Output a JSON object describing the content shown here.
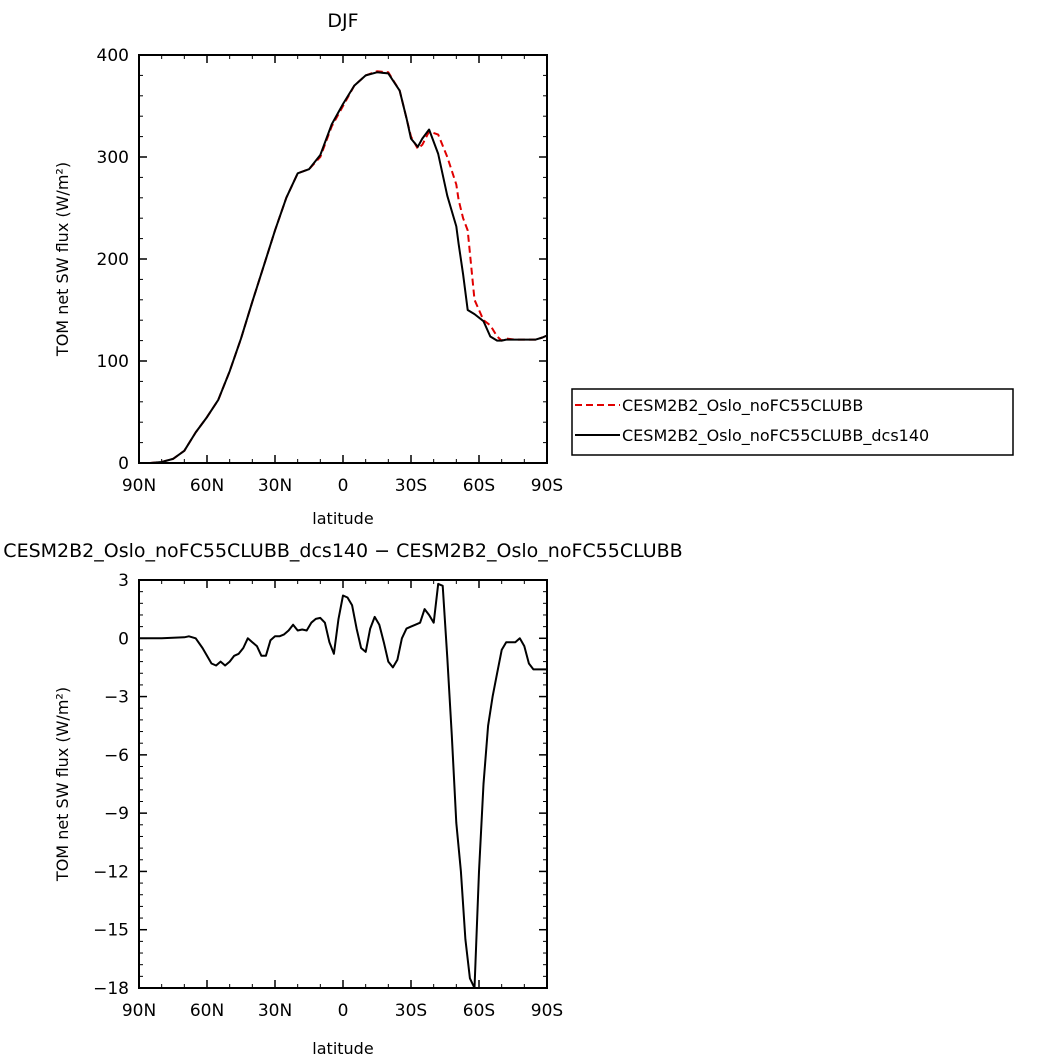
{
  "chart_data": [
    {
      "type": "line",
      "title": "DJF",
      "xlabel": "latitude",
      "ylabel": "TOM net SW flux (W/m²)",
      "xlim": [
        -90,
        90
      ],
      "ylim": [
        0,
        400
      ],
      "xticks": [
        -90,
        -60,
        -30,
        0,
        30,
        60,
        90
      ],
      "xtick_labels": [
        "90N",
        "60N",
        "30N",
        "0",
        "30S",
        "60S",
        "90S"
      ],
      "yticks": [
        0,
        100,
        200,
        300,
        400
      ],
      "ytick_labels": [
        "0",
        "100",
        "200",
        "300",
        "400"
      ],
      "legend": "outside-right",
      "series": [
        {
          "name": "CESM2B2_Oslo_noFC55CLUBB",
          "color": "#e00000",
          "dash": "dashed",
          "x": [
            -90,
            -85,
            -80,
            -75,
            -70,
            -65,
            -60,
            -55,
            -50,
            -45,
            -40,
            -35,
            -30,
            -25,
            -20,
            -15,
            -10,
            -5,
            0,
            5,
            10,
            15,
            20,
            25,
            28,
            30,
            33,
            35,
            38,
            42,
            46,
            50,
            51,
            53,
            55,
            58,
            62,
            65,
            68,
            70,
            72,
            76,
            78,
            80,
            85,
            88,
            90
          ],
          "y": [
            0,
            0,
            1,
            4,
            12,
            30,
            45,
            62,
            90,
            122,
            158,
            193,
            228,
            260,
            284,
            288,
            300,
            330,
            350,
            370,
            380,
            384,
            383,
            365,
            338,
            320,
            308,
            312,
            325,
            322,
            300,
            273,
            258,
            240,
            228,
            160,
            140,
            135,
            124,
            120,
            122,
            121,
            121,
            121,
            121,
            123,
            125
          ]
        },
        {
          "name": "CESM2B2_Oslo_noFC55CLUBB_dcs140",
          "color": "#000000",
          "dash": "solid",
          "x": [
            -90,
            -85,
            -80,
            -75,
            -70,
            -65,
            -60,
            -55,
            -50,
            -45,
            -40,
            -35,
            -30,
            -25,
            -20,
            -15,
            -10,
            -5,
            0,
            5,
            10,
            15,
            20,
            25,
            28,
            30,
            33,
            35,
            38,
            42,
            46,
            50,
            51,
            53,
            55,
            58,
            62,
            65,
            68,
            70,
            72,
            76,
            78,
            80,
            85,
            88,
            90
          ],
          "y": [
            0,
            0,
            1,
            4,
            12,
            30,
            45,
            62,
            90,
            122,
            158,
            193,
            228,
            260,
            284,
            288,
            302,
            332,
            352,
            370,
            380,
            383,
            382,
            365,
            338,
            318,
            310,
            318,
            327,
            303,
            262,
            232,
            215,
            185,
            150,
            146,
            139,
            124,
            120,
            120,
            121,
            121,
            121,
            121,
            121,
            123,
            125
          ]
        }
      ]
    },
    {
      "type": "line",
      "title": "CESM2B2_Oslo_noFC55CLUBB_dcs140 − CESM2B2_Oslo_noFC55CLUBB",
      "xlabel": "latitude",
      "ylabel": "TOM net SW flux (W/m²)",
      "xlim": [
        -90,
        90
      ],
      "ylim": [
        -18,
        3
      ],
      "xticks": [
        -90,
        -60,
        -30,
        0,
        30,
        60,
        90
      ],
      "xtick_labels": [
        "90N",
        "60N",
        "30N",
        "0",
        "30S",
        "60S",
        "90S"
      ],
      "yticks": [
        3,
        0,
        -3,
        -6,
        -9,
        -12,
        -15,
        -18
      ],
      "ytick_labels": [
        "3",
        "0",
        "−3",
        "−6",
        "−9",
        "−12",
        "−15",
        "−18"
      ],
      "series": [
        {
          "color": "#000000",
          "x": [
            -90,
            -80,
            -70,
            -68,
            -65,
            -62,
            -60,
            -58,
            -56,
            -54,
            -52,
            -50,
            -48,
            -46,
            -44,
            -42,
            -40,
            -38,
            -36,
            -34,
            -32,
            -30,
            -28,
            -26,
            -24,
            -22,
            -20,
            -18,
            -16,
            -14,
            -12,
            -10,
            -8,
            -6,
            -4,
            -2,
            0,
            2,
            4,
            6,
            8,
            10,
            12,
            14,
            16,
            18,
            20,
            22,
            24,
            26,
            28,
            30,
            32,
            34,
            36,
            38,
            40,
            42,
            44,
            46,
            48,
            50,
            52,
            54,
            56,
            58,
            60,
            62,
            64,
            66,
            68,
            70,
            72,
            74,
            76,
            78,
            80,
            82,
            84,
            86,
            88,
            90
          ],
          "y": [
            0,
            0,
            0.05,
            0.1,
            0,
            -0.5,
            -0.9,
            -1.3,
            -1.4,
            -1.2,
            -1.4,
            -1.2,
            -0.9,
            -0.8,
            -0.5,
            0,
            -0.2,
            -0.4,
            -0.9,
            -0.9,
            -0.1,
            0.1,
            0.1,
            0.2,
            0.4,
            0.7,
            0.4,
            0.45,
            0.4,
            0.8,
            1.0,
            1.05,
            0.8,
            -0.2,
            -0.8,
            1.0,
            2.2,
            2.1,
            1.7,
            0.5,
            -0.5,
            -0.7,
            0.5,
            1.1,
            0.7,
            -0.2,
            -1.2,
            -1.5,
            -1.1,
            0,
            0.5,
            0.6,
            0.7,
            0.8,
            1.5,
            1.2,
            0.8,
            2.8,
            2.7,
            -1.0,
            -5.0,
            -9.5,
            -12.0,
            -15.5,
            -17.5,
            -18.0,
            -12.0,
            -7.5,
            -4.5,
            -3.0,
            -1.8,
            -0.6,
            -0.2,
            -0.2,
            -0.2,
            0,
            -0.4,
            -1.3,
            -1.6,
            -1.6,
            -1.6,
            -1.6
          ]
        }
      ]
    }
  ]
}
